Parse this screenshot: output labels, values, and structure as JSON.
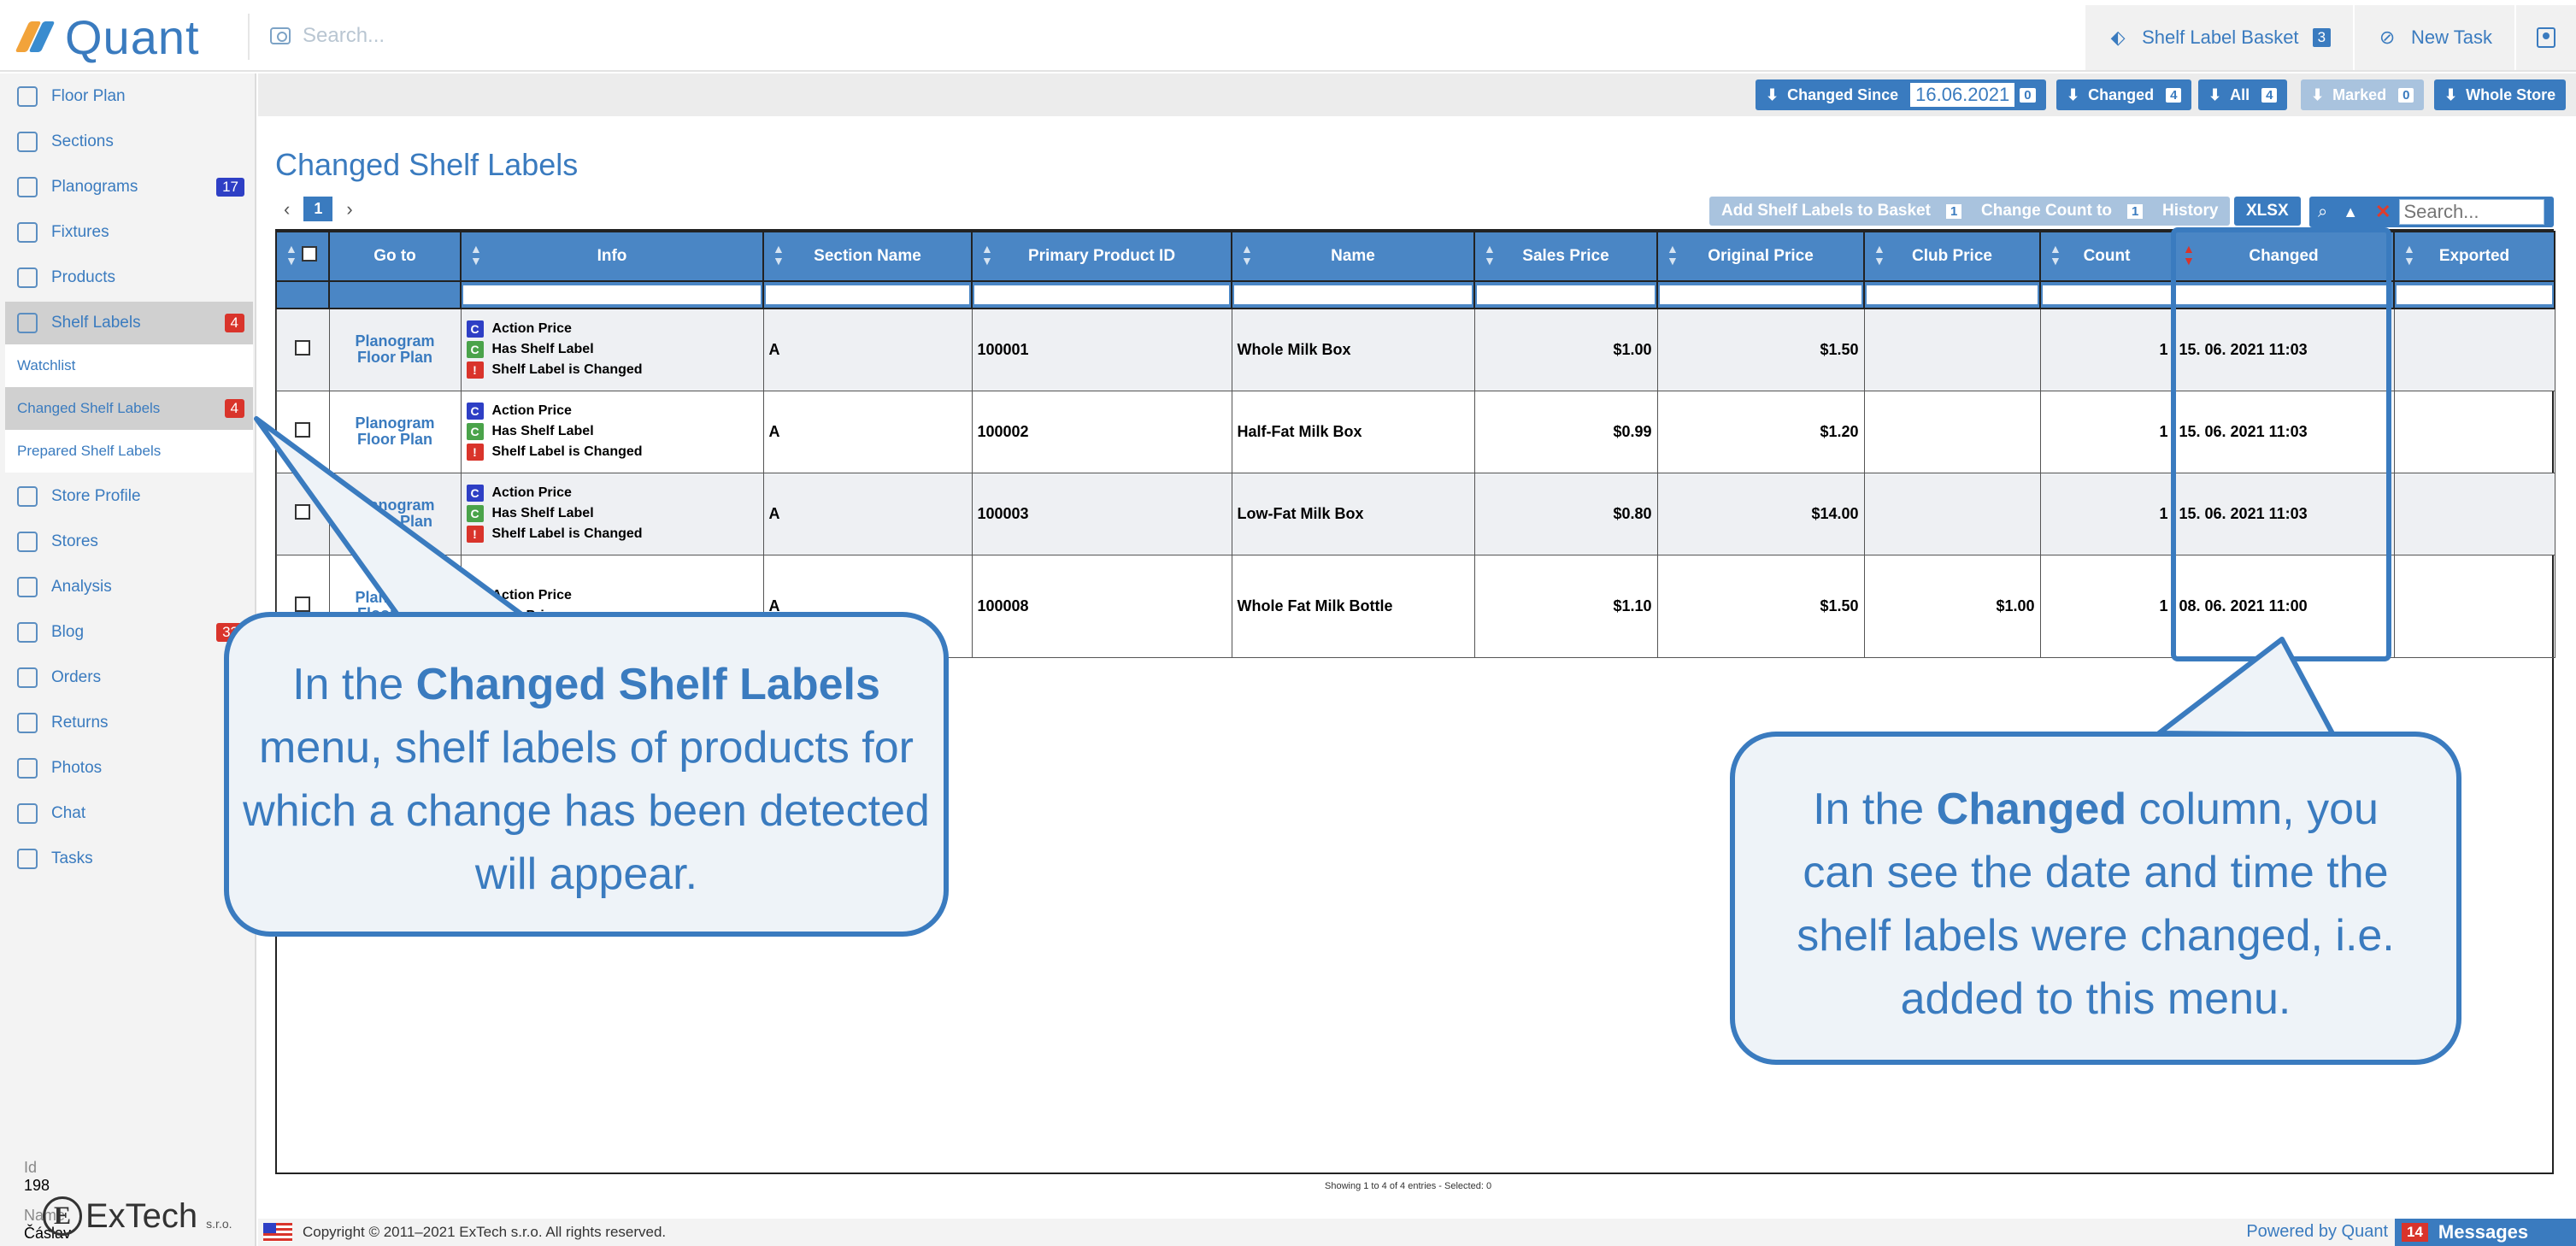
{
  "app": {
    "name": "Quant"
  },
  "header": {
    "search_placeholder": "Search...",
    "basket_label": "Shelf Label Basket",
    "basket_count": "3",
    "new_task_label": "New Task"
  },
  "sidebar": {
    "items": [
      {
        "label": "Floor Plan"
      },
      {
        "label": "Sections"
      },
      {
        "label": "Planograms",
        "badge": "17"
      },
      {
        "label": "Fixtures"
      },
      {
        "label": "Products"
      },
      {
        "label": "Shelf Labels",
        "badge": "4"
      },
      {
        "label": "Store Profile"
      },
      {
        "label": "Stores"
      },
      {
        "label": "Analysis"
      },
      {
        "label": "Blog",
        "badge": "33"
      },
      {
        "label": "Orders"
      },
      {
        "label": "Returns"
      },
      {
        "label": "Photos"
      },
      {
        "label": "Chat"
      },
      {
        "label": "Tasks"
      }
    ],
    "subitems": [
      {
        "label": "Watchlist"
      },
      {
        "label": "Changed Shelf Labels",
        "badge": "4"
      },
      {
        "label": "Prepared Shelf Labels"
      }
    ],
    "id_label": "Id",
    "id_value": "198",
    "name_label": "Name",
    "name_value": "Čáslav",
    "company_text": "ExTech",
    "company_suffix": "s.r.o."
  },
  "toolbar": {
    "changed_since_label": "Changed Since",
    "changed_since_date": "16.06.2021",
    "changed_since_count": "0",
    "changed_label": "Changed",
    "changed_count": "4",
    "all_label": "All",
    "all_count": "4",
    "marked_label": "Marked",
    "marked_count": "0",
    "whole_store_label": "Whole Store"
  },
  "page": {
    "title": "Changed Shelf Labels",
    "current_page": "1",
    "add_to_basket_label": "Add Shelf Labels to Basket",
    "add_to_basket_count": "1",
    "change_count_label": "Change Count to",
    "change_count_value": "1",
    "history_label": "History",
    "xlsx_label": "XLSX",
    "search_placeholder": "Search...",
    "showing_text": "Showing 1 to 4 of 4 entries - Selected: 0"
  },
  "table": {
    "columns": [
      "Go to",
      "Info",
      "Section Name",
      "Primary Product ID",
      "Name",
      "Sales Price",
      "Original Price",
      "Club Price",
      "Count",
      "Changed",
      "Exported"
    ],
    "goto_line1": "Planogram",
    "goto_line2": "Floor Plan",
    "rows": [
      {
        "info": [
          "Action Price",
          "Has Shelf Label",
          "Shelf Label is Changed"
        ],
        "section": "A",
        "product_id": "100001",
        "name": "Whole Milk Box",
        "sales_price": "$1.00",
        "original_price": "$1.50",
        "club_price": "",
        "count": "1",
        "changed": "15. 06. 2021 11:03",
        "exported": ""
      },
      {
        "info": [
          "Action Price",
          "Has Shelf Label",
          "Shelf Label is Changed"
        ],
        "section": "A",
        "product_id": "100002",
        "name": "Half-Fat Milk Box",
        "sales_price": "$0.99",
        "original_price": "$1.20",
        "club_price": "",
        "count": "1",
        "changed": "15. 06. 2021 11:03",
        "exported": ""
      },
      {
        "info": [
          "Action Price",
          "Has Shelf Label",
          "Shelf Label is Changed"
        ],
        "section": "A",
        "product_id": "100003",
        "name": "Low-Fat Milk Box",
        "sales_price": "$0.80",
        "original_price": "$14.00",
        "club_price": "",
        "count": "1",
        "changed": "15. 06. 2021 11:03",
        "exported": ""
      },
      {
        "info": [
          "Action Price",
          "Club Price"
        ],
        "section": "A",
        "product_id": "100008",
        "name": "Whole Fat Milk Bottle",
        "sales_price": "$1.10",
        "original_price": "$1.50",
        "club_price": "$1.00",
        "count": "1",
        "changed": "08. 06. 2021 11:00",
        "exported": ""
      }
    ]
  },
  "tags": {
    "c": "C",
    "bang": "!"
  },
  "callouts": {
    "left": {
      "pre": "In the ",
      "bold": "Changed Shelf Labels",
      "post": " menu, shelf labels of products for which a change has been detected will appear."
    },
    "right": {
      "pre": "In the ",
      "bold": "Changed",
      "post": " column, you can see the date and time the shelf labels were changed, i.e. added to this menu."
    }
  },
  "footer": {
    "copyright": "Copyright © 2011–2021 ExTech s.r.o. All rights reserved.",
    "powered_by": "Powered by Quant",
    "messages_count": "14",
    "messages_label": "Messages"
  },
  "colors": {
    "accent": "#3a7bbf",
    "badge_red": "#d9342b",
    "table_header": "#4a86c5"
  }
}
